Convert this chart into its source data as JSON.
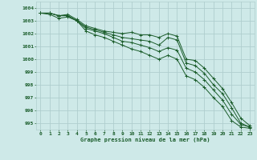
{
  "title": "Graphe pression niveau de la mer (hPa)",
  "bg_color": "#cee9e8",
  "grid_color": "#b0cece",
  "line_color": "#1a5c2a",
  "x_min": -0.5,
  "x_max": 23.5,
  "y_min": 994.5,
  "y_max": 1004.5,
  "y_ticks": [
    995,
    996,
    997,
    998,
    999,
    1000,
    1001,
    1002,
    1003,
    1004
  ],
  "x_ticks": [
    0,
    1,
    2,
    3,
    4,
    5,
    6,
    7,
    8,
    9,
    10,
    11,
    12,
    13,
    14,
    15,
    16,
    17,
    18,
    19,
    20,
    21,
    22,
    23
  ],
  "series": [
    [
      1003.6,
      1003.6,
      1003.4,
      1003.5,
      1003.1,
      1002.6,
      1002.4,
      1002.2,
      1002.1,
      1002.0,
      1002.1,
      1001.9,
      1001.9,
      1001.7,
      1002.0,
      1001.8,
      1000.0,
      999.9,
      999.3,
      998.5,
      997.7,
      996.6,
      995.4,
      994.8
    ],
    [
      1003.6,
      1003.6,
      1003.4,
      1003.4,
      1003.0,
      1002.5,
      1002.3,
      1002.1,
      1001.9,
      1001.7,
      1001.6,
      1001.5,
      1001.4,
      1001.1,
      1001.7,
      1001.5,
      999.7,
      999.5,
      998.9,
      998.0,
      997.3,
      996.2,
      995.0,
      994.7
    ],
    [
      1003.6,
      1003.6,
      1003.4,
      1003.4,
      1003.0,
      1002.4,
      1002.2,
      1002.0,
      1001.7,
      1001.4,
      1001.3,
      1001.1,
      1000.9,
      1000.6,
      1000.9,
      1000.7,
      999.3,
      999.0,
      998.4,
      997.6,
      996.8,
      995.7,
      994.9,
      994.7
    ],
    [
      1003.6,
      1003.5,
      1003.2,
      1003.3,
      1003.0,
      1002.2,
      1001.9,
      1001.7,
      1001.4,
      1001.1,
      1000.8,
      1000.6,
      1000.3,
      1000.0,
      1000.3,
      1000.0,
      998.7,
      998.4,
      997.8,
      997.0,
      996.3,
      995.2,
      994.7,
      994.6
    ]
  ]
}
